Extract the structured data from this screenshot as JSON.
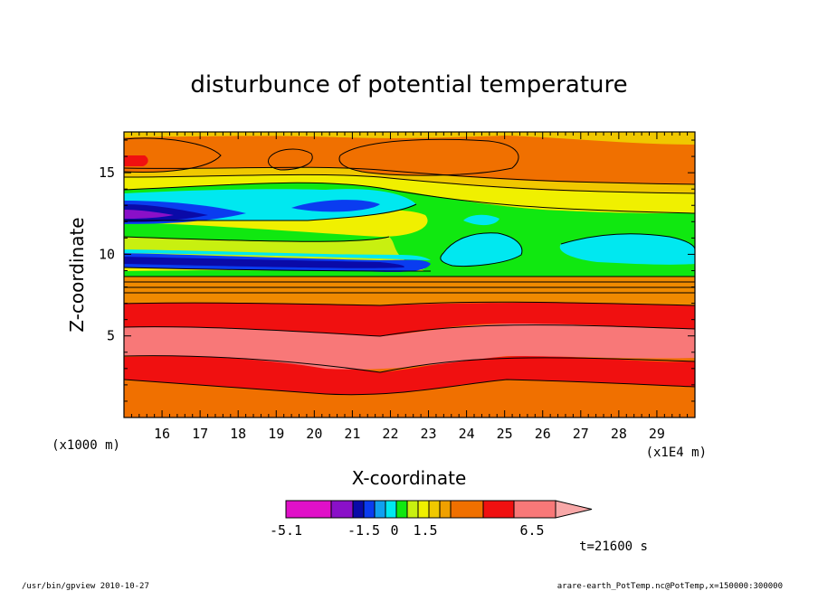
{
  "chart_data": {
    "type": "heatmap",
    "title": "disturbunce of potential temperature",
    "xlabel": "X-coordinate",
    "ylabel": "Z-coordinate",
    "x_scale_note": "(x1E4 m)",
    "y_scale_note": "(x1000 m)",
    "xlim": [
      15.0,
      30.0
    ],
    "ylim": [
      0.0,
      17.5
    ],
    "xticks": [
      "16",
      "17",
      "18",
      "19",
      "20",
      "21",
      "22",
      "23",
      "24",
      "25",
      "26",
      "27",
      "28",
      "29"
    ],
    "yticks": [
      "5",
      "10",
      "15"
    ],
    "levels": [
      -5.1,
      -4.5,
      -3.5,
      -2.5,
      -1.5,
      -1.0,
      -0.5,
      0,
      0.5,
      1.0,
      1.5,
      2.5,
      3.5,
      4.5,
      6.5
    ],
    "colorbar_labels": [
      "-5.1",
      "-1.5",
      "0",
      "1.5",
      "6.5"
    ],
    "colors": [
      "#e010c8",
      "#8a10c8",
      "#0a0aa8",
      "#0a3cf0",
      "#10a0f0",
      "#00e8f0",
      "#10e810",
      "#c8f010",
      "#f0f000",
      "#f0c800",
      "#f0a000",
      "#f07000",
      "#f01010",
      "#f87878",
      "#f8a8a8"
    ],
    "layers": [
      {
        "z": [
          0.0,
          0.0
        ],
        "level": "2.5",
        "label": "bottom orange"
      },
      {
        "z": [
          2.2,
          3.8
        ],
        "level": "3.5",
        "label": "lower red band"
      },
      {
        "z": [
          3.8,
          5.2
        ],
        "level": "4.5",
        "label": "pink band"
      },
      {
        "z": [
          5.2,
          7.3
        ],
        "level": "3.5",
        "label": "middle red band"
      },
      {
        "z": [
          7.3,
          8.9
        ],
        "level": "2.5",
        "label": "orange band"
      },
      {
        "z": [
          8.9,
          10.2
        ],
        "level": "-0.5",
        "label": "green layer"
      },
      {
        "z": [
          9.8,
          10.2
        ],
        "level": "-3.5",
        "label": "lower blue streak"
      },
      {
        "z": [
          10.2,
          11.8
        ],
        "level": "0.5",
        "label": "yellow layer"
      },
      {
        "z": [
          11.8,
          14.0
        ],
        "level": "-1.0",
        "label": "cyan layer"
      },
      {
        "z": [
          12.4,
          13.0
        ],
        "level": "-5.1",
        "label": "upper magenta core"
      },
      {
        "z": [
          14.0,
          14.8
        ],
        "level": "1.0",
        "label": "yellow band"
      },
      {
        "z": [
          14.8,
          17.5
        ],
        "level": "2.5",
        "label": "top orange"
      }
    ]
  },
  "colorbar": {
    "labels": [
      "-5.1",
      "-1.5",
      "0",
      "1.5",
      "6.5"
    ]
  },
  "time_label": "t=21600 s",
  "footer": {
    "left": "/usr/bin/gpview   2010-10-27",
    "right": "arare-earth_PotTemp.nc@PotTemp,x=150000:300000"
  }
}
